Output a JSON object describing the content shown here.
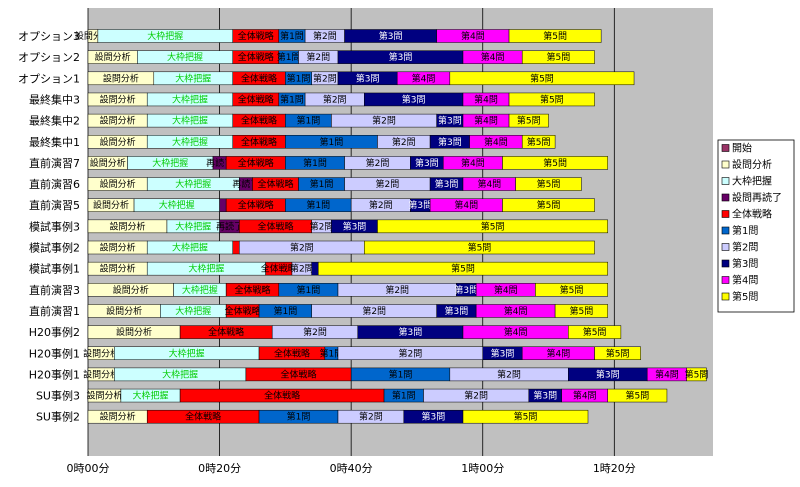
{
  "chart_data": {
    "type": "bar",
    "orientation": "horizontal",
    "stacked": true,
    "title": "",
    "xlabel": "",
    "ylabel": "",
    "x_unit": "minutes",
    "xlim": [
      0,
      95
    ],
    "x_ticks": [
      0,
      20,
      40,
      60,
      80
    ],
    "x_tick_labels": [
      "0時00分",
      "0時20分",
      "0時40分",
      "1時00分",
      "1時20分"
    ],
    "grid": true,
    "legend_position": "right",
    "segments": [
      "開始",
      "設問分析",
      "大枠把握",
      "設問再読了",
      "全体戦略",
      "第1問",
      "第2問",
      "第3問",
      "第4問",
      "第5問"
    ],
    "segment_labels": [
      "開始",
      "設問分析",
      "大枠把握",
      "再読了",
      "全体戦略",
      "第1問",
      "第2問",
      "第3問",
      "第4問",
      "第5問"
    ],
    "colors": [
      "#993366",
      "#ffffcc",
      "#ccffff",
      "#660066",
      "#ff0000",
      "#0066cc",
      "#ccccff",
      "#000080",
      "#ff00ff",
      "#ffff00"
    ],
    "label_colors": [
      "#000000",
      "#000000",
      "#00cc00",
      "#000000",
      "#000000",
      "#000000",
      "#000000",
      "#ffffff",
      "#000000",
      "#000000"
    ],
    "categories": [
      "オプション3",
      "オプション2",
      "オプション1",
      "最終集中3",
      "最終集中2",
      "最終集中1",
      "直前演習7",
      "直前演習6",
      "直前演習5",
      "模試事例3",
      "模試事例2",
      "模試事例1",
      "直前演習3",
      "直前演習1",
      "H20事例2",
      "H20事例1",
      "H20事例1",
      "SU事例3",
      "SU事例2"
    ],
    "series": [
      {
        "name": "開始",
        "values": [
          0,
          0,
          0,
          0,
          0,
          0,
          0,
          0,
          0,
          0,
          0,
          0,
          0,
          0,
          0,
          0,
          0,
          0,
          0
        ]
      },
      {
        "name": "設問分析",
        "values": [
          1.5,
          7.5,
          10,
          9,
          9,
          9,
          6,
          9,
          7,
          12,
          9,
          9,
          13,
          11,
          14,
          4,
          4,
          5,
          9
        ]
      },
      {
        "name": "大枠把握",
        "values": [
          20.5,
          14.5,
          12,
          13,
          13,
          13,
          13,
          14,
          13,
          8,
          13,
          18,
          8,
          10,
          0,
          22,
          20,
          9,
          0
        ]
      },
      {
        "name": "設問再読了",
        "values": [
          0,
          0,
          0,
          0,
          0,
          0,
          2,
          2,
          1,
          3,
          0,
          0,
          0,
          0,
          0,
          0,
          0,
          0,
          0
        ]
      },
      {
        "name": "全体戦略",
        "values": [
          7,
          7,
          8,
          7,
          8,
          8,
          9,
          7,
          9,
          11,
          1,
          4,
          8,
          5,
          14,
          10,
          16,
          31,
          17
        ]
      },
      {
        "name": "第1問",
        "values": [
          4,
          3,
          4,
          4,
          7,
          14,
          9,
          7,
          10,
          0,
          0,
          0,
          9,
          8,
          0,
          2,
          15,
          6,
          12
        ]
      },
      {
        "name": "第2問",
        "values": [
          6,
          6,
          4,
          9,
          16,
          8,
          10,
          13,
          9,
          3,
          19,
          3,
          18,
          19,
          13,
          22,
          18,
          16,
          10
        ]
      },
      {
        "name": "第3問",
        "values": [
          14,
          19,
          9,
          15,
          4,
          6,
          5,
          5,
          3,
          7,
          0,
          1,
          3,
          6,
          16,
          6,
          12,
          5,
          9
        ]
      },
      {
        "name": "第4問",
        "values": [
          11,
          9,
          8,
          7,
          7,
          8,
          9,
          8,
          11,
          0,
          0,
          0,
          9,
          12,
          16,
          11,
          6,
          7,
          0
        ]
      },
      {
        "name": "第5問",
        "values": [
          14,
          11,
          28,
          13,
          6,
          5,
          16,
          10,
          14,
          35,
          35,
          44,
          11,
          8,
          8,
          7,
          3,
          9,
          19
        ]
      }
    ]
  }
}
